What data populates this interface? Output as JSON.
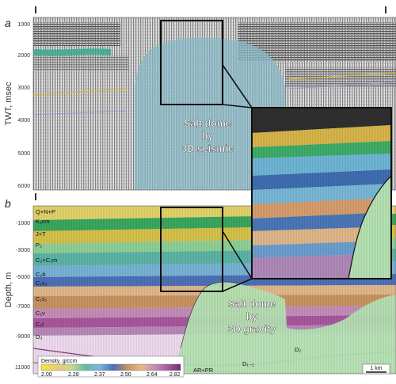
{
  "panel_a": {
    "letter": "a",
    "y_label": "TWT, msec",
    "y_ticks": [
      "1000",
      "2000",
      "3000",
      "4000",
      "5000",
      "6000"
    ],
    "annotation": [
      "Salt dome",
      "by",
      "3D seismic"
    ]
  },
  "panel_b": {
    "letter": "b",
    "y_label": "Depth, m",
    "y_ticks": [
      "-1000",
      "-3000",
      "-5000",
      "-7000",
      "-9000",
      "11000"
    ],
    "annotation": [
      "Salt dome",
      "by",
      "3D gravity"
    ],
    "unit_labels": [
      "Q+N+P",
      "K₁cm",
      "J+T",
      "P₂",
      "C₂+C₃m",
      "C₂b",
      "C₁s₂",
      "C₁s₁",
      "C₁v",
      "C₁t",
      "D₃",
      "D₂",
      "D₁₋₂",
      "AR+PR"
    ]
  },
  "legend": {
    "title": "Density, g/ccm",
    "ticks": [
      "2.00",
      "2.28",
      "2.37",
      "2.50",
      "2.64",
      "2.82"
    ],
    "colors": [
      "#f5e33a",
      "#f3d565",
      "#e9c87a",
      "#c9d98d",
      "#8cc98c",
      "#56b7a3",
      "#5fb9c9",
      "#80b8d9",
      "#5a8cc7",
      "#4d69b3",
      "#c89563",
      "#e2b78d",
      "#cfa186",
      "#b87ab4",
      "#a1539a",
      "#7c2f7e"
    ]
  },
  "scale_bar": "1 km"
}
